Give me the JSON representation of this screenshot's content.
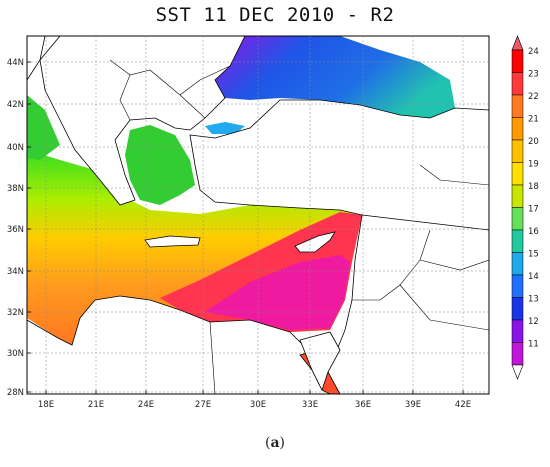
{
  "title": "SST 11 DEC 2010 - R2",
  "caption": {
    "open": "(",
    "letter": "a",
    "close": ")"
  },
  "colors": {
    "sea_west": "#ff9a1e",
    "sea_north": "#ffd11a",
    "sea_east": "#ff3550",
    "land": "#ffffff",
    "aegean": "#33cc33",
    "black_sea": "#1f55e6",
    "black_sea_top": "#9a11e0",
    "black_sea_se": "#22b7c8",
    "border": "#000000"
  },
  "map": {
    "lon_ticks": [
      "18E",
      "21E",
      "24E",
      "27E",
      "30E",
      "33E",
      "36E",
      "39E",
      "42E"
    ],
    "lat_ticks": [
      "44N",
      "42N",
      "40N",
      "38N",
      "36N",
      "34N",
      "32N",
      "30N",
      "28N"
    ]
  },
  "colorbar": {
    "labels": [
      "24",
      "23",
      "22",
      "21",
      "20",
      "19",
      "18",
      "17",
      "16",
      "15",
      "14",
      "13",
      "12",
      "11"
    ],
    "colors": [
      "#ff0000",
      "#ff3a3a",
      "#ff7a20",
      "#ff9a00",
      "#ffc000",
      "#ffe000",
      "#c8e600",
      "#66e05a",
      "#22c8a0",
      "#20a8e8",
      "#2070ff",
      "#1a34e8",
      "#8a14e8",
      "#c016d8"
    ]
  }
}
